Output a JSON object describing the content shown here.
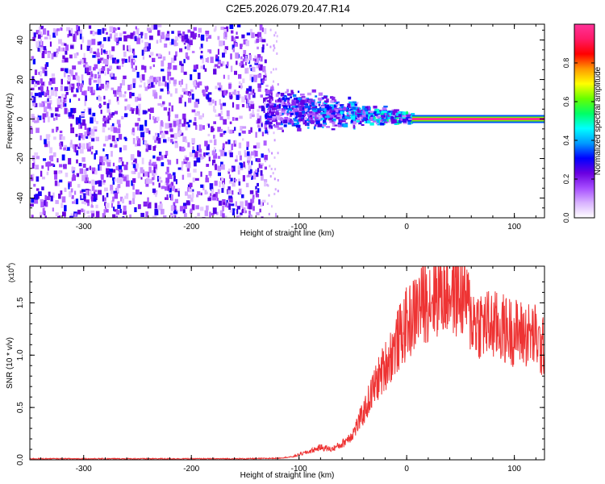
{
  "figure_title": "C2E5.2026.079.20.47.R14",
  "chart_data": [
    {
      "type": "heatmap",
      "title": "C2E5.2026.079.20.47.R14",
      "xlabel": "Height of straight line (km)",
      "ylabel": "Frequency (Hz)",
      "xlim": [
        -350,
        128
      ],
      "ylim": [
        -50,
        48
      ],
      "xticks": [
        -300,
        -200,
        -100,
        0,
        100
      ],
      "xtick_labels": [
        "-300",
        "-200",
        "-100",
        "0",
        "100"
      ],
      "yticks": [
        -40,
        -20,
        0,
        20,
        40
      ],
      "ytick_labels": [
        "-40",
        "-20",
        "0",
        "20",
        "40"
      ],
      "colorbar": {
        "label": "Normalized spectral amplitude",
        "range": [
          0,
          1
        ],
        "ticks": [
          0.0,
          0.2,
          0.4,
          0.6,
          0.8
        ],
        "tick_labels": [
          "0.0",
          "0.2",
          "0.4",
          "0.6",
          "0.8"
        ],
        "colors": [
          "#ffffff",
          "#d9b3ff",
          "#a64dff",
          "#6a00e0",
          "#0000ff",
          "#0099ff",
          "#00ffff",
          "#00ff66",
          "#66ff00",
          "#ffff00",
          "#ff9900",
          "#ff0000",
          "#ff1a66",
          "#ff3399"
        ]
      },
      "regions": [
        {
          "name": "noise",
          "x_range": [
            -350,
            -132
          ],
          "freq_range": [
            -50,
            48
          ],
          "amplitude": 0.12
        },
        {
          "name": "signal-scatter",
          "x_range": [
            -132,
            5
          ],
          "center_freq_start": 6,
          "center_freq_end": 1,
          "amplitude": 0.45
        },
        {
          "name": "carrier-line",
          "x_range": [
            5,
            128
          ],
          "freq": 0,
          "amplitude": 0.98
        }
      ]
    },
    {
      "type": "line",
      "xlabel": "Height of straight line (km)",
      "ylabel": "SNR (10 * v/v)",
      "y_multiplier": "(x10",
      "y_multiplier_exp": "4",
      "y_multiplier_close": ")",
      "xlim": [
        -350,
        128
      ],
      "ylim": [
        0,
        1.85
      ],
      "xticks": [
        -300,
        -200,
        -100,
        0,
        100
      ],
      "xtick_labels": [
        "-300",
        "-200",
        "-100",
        "0",
        "100"
      ],
      "yticks": [
        0.0,
        0.5,
        1.0,
        1.5
      ],
      "ytick_labels": [
        "0.0",
        "0.5",
        "1.0",
        "1.5"
      ],
      "color": "#ee3333",
      "series": [
        {
          "name": "SNR",
          "x": [
            -350,
            -300,
            -250,
            -200,
            -150,
            -120,
            -105,
            -100,
            -90,
            -80,
            -70,
            -60,
            -50,
            -40,
            -30,
            -20,
            -10,
            0,
            5,
            10,
            20,
            30,
            40,
            50,
            55,
            60,
            70,
            80,
            90,
            100,
            110,
            120,
            125,
            128
          ],
          "y": [
            0.01,
            0.01,
            0.01,
            0.01,
            0.01,
            0.015,
            0.03,
            0.05,
            0.08,
            0.12,
            0.1,
            0.15,
            0.25,
            0.45,
            0.7,
            0.9,
            1.1,
            1.3,
            1.35,
            1.45,
            1.55,
            1.6,
            1.62,
            1.58,
            1.55,
            1.35,
            1.3,
            1.28,
            1.25,
            1.22,
            1.2,
            1.18,
            1.05,
            1.1
          ]
        }
      ]
    }
  ]
}
